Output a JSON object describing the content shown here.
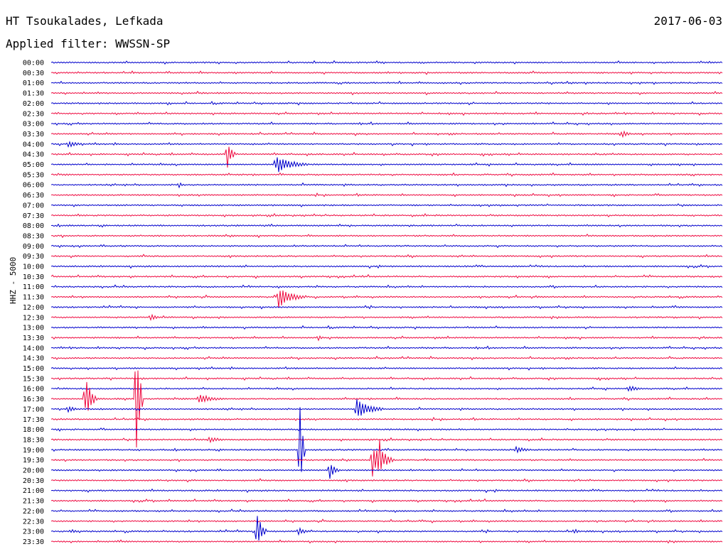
{
  "header": {
    "station": "HT Tsoukalades, Lefkada",
    "date": "2017-06-03",
    "filter": "Applied filter: WWSSN-SP"
  },
  "chart_data": {
    "type": "line",
    "kind": "helicorder",
    "ylabel": "HHZ - 5000",
    "colors": [
      "#0000cc",
      "#ee0a40"
    ],
    "row_times": [
      "00:00",
      "00:30",
      "01:00",
      "01:30",
      "02:00",
      "02:30",
      "03:00",
      "03:30",
      "04:00",
      "04:30",
      "05:00",
      "05:30",
      "06:00",
      "06:30",
      "07:00",
      "07:30",
      "08:00",
      "08:30",
      "09:00",
      "09:30",
      "10:00",
      "10:30",
      "11:00",
      "11:30",
      "12:00",
      "12:30",
      "13:00",
      "13:30",
      "14:00",
      "14:30",
      "15:00",
      "15:30",
      "16:00",
      "16:30",
      "17:00",
      "17:30",
      "18:00",
      "18:30",
      "19:00",
      "19:30",
      "20:00",
      "20:30",
      "21:00",
      "21:30",
      "22:00",
      "22:30",
      "23:00",
      "23:30"
    ],
    "events": [
      {
        "row": 7,
        "at": 0.85,
        "amp": 8,
        "dur": 0.015
      },
      {
        "row": 8,
        "at": 0.025,
        "amp": 5,
        "dur": 0.03
      },
      {
        "row": 9,
        "at": 0.262,
        "amp": 24,
        "dur": 0.012
      },
      {
        "row": 10,
        "at": 0.335,
        "amp": 13,
        "dur": 0.05
      },
      {
        "row": 12,
        "at": 0.19,
        "amp": 5,
        "dur": 0.01
      },
      {
        "row": 23,
        "at": 0.338,
        "amp": 17,
        "dur": 0.04
      },
      {
        "row": 25,
        "at": 0.148,
        "amp": 5,
        "dur": 0.02
      },
      {
        "row": 27,
        "at": 0.398,
        "amp": 5,
        "dur": 0.01
      },
      {
        "row": 32,
        "at": 0.86,
        "amp": 5,
        "dur": 0.03
      },
      {
        "row": 33,
        "at": 0.051,
        "amp": 40,
        "dur": 0.015
      },
      {
        "row": 33,
        "at": 0.127,
        "amp": 98,
        "dur": 0.01
      },
      {
        "row": 33,
        "at": 0.22,
        "amp": 8,
        "dur": 0.04
      },
      {
        "row": 34,
        "at": 0.025,
        "amp": 5,
        "dur": 0.02
      },
      {
        "row": 34,
        "at": 0.455,
        "amp": 15,
        "dur": 0.04
      },
      {
        "row": 37,
        "at": 0.235,
        "amp": 5,
        "dur": 0.03
      },
      {
        "row": 38,
        "at": 0.37,
        "amp": 85,
        "dur": 0.008
      },
      {
        "row": 38,
        "at": 0.692,
        "amp": 5,
        "dur": 0.03
      },
      {
        "row": 39,
        "at": 0.478,
        "amp": 30,
        "dur": 0.012
      },
      {
        "row": 39,
        "at": 0.488,
        "amp": 42,
        "dur": 0.01
      },
      {
        "row": 39,
        "at": 0.497,
        "amp": 15,
        "dur": 0.015
      },
      {
        "row": 40,
        "at": 0.415,
        "amp": 14,
        "dur": 0.015
      },
      {
        "row": 46,
        "at": 0.307,
        "amp": 30,
        "dur": 0.015
      },
      {
        "row": 46,
        "at": 0.368,
        "amp": 6,
        "dur": 0.02
      },
      {
        "row": 46,
        "at": 0.78,
        "amp": 6,
        "dur": 0.01
      },
      {
        "row": 46,
        "at": 0.03,
        "amp": 4,
        "dur": 0.015
      }
    ]
  }
}
